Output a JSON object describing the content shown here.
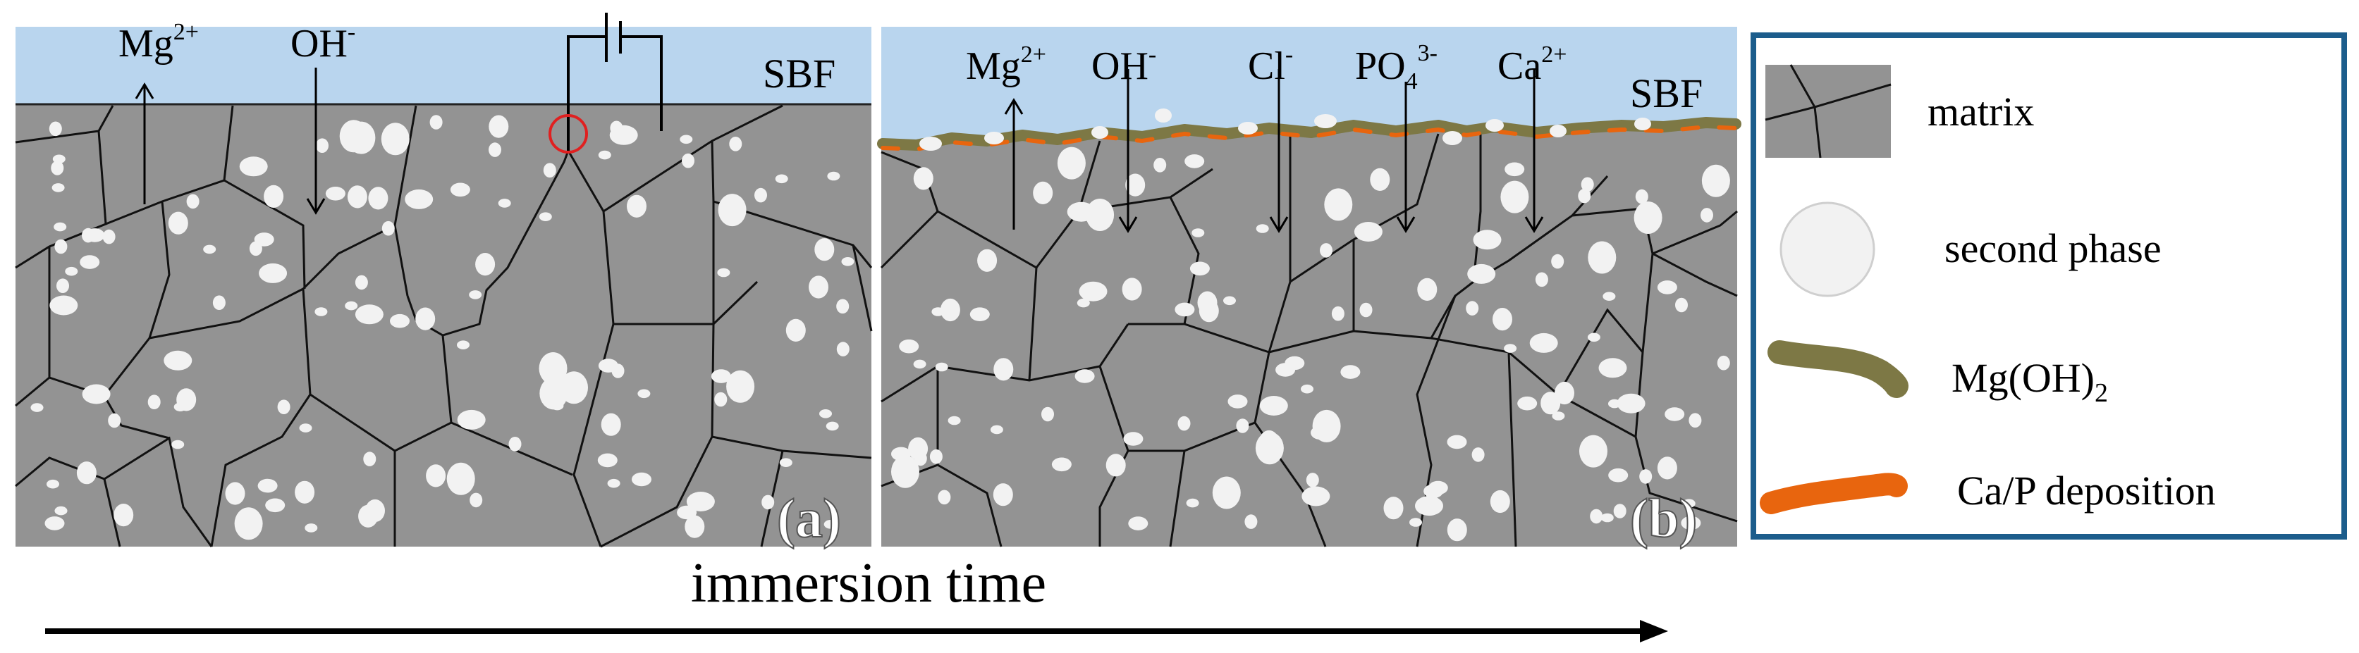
{
  "colors": {
    "solution": "#b9d5ee",
    "matrix": "#939393",
    "grain_boundary": "#111111",
    "second_phase": "#f2f2f2",
    "mgoh2": "#7d7845",
    "cap": "#e8650e",
    "legend_frame": "#1c5d8c",
    "pit_circle": "#e02020"
  },
  "panel_a": {
    "solution_label": "SBF",
    "ions": [
      {
        "base": "Mg",
        "sup": "2+",
        "sub": ""
      },
      {
        "base": "OH",
        "sup": "-",
        "sub": ""
      }
    ],
    "letter": "(a)"
  },
  "panel_b": {
    "solution_label": "SBF",
    "ions": [
      {
        "base": "Mg",
        "sup": "2+",
        "sub": ""
      },
      {
        "base": "OH",
        "sup": "-",
        "sub": ""
      },
      {
        "base": "Cl",
        "sup": "-",
        "sub": ""
      },
      {
        "base": "PO",
        "sup": "3-",
        "sub": "4"
      },
      {
        "base": "Ca",
        "sup": "2+",
        "sub": ""
      }
    ],
    "letter": "(b)"
  },
  "legend": {
    "items": [
      {
        "key": "matrix",
        "label": "matrix"
      },
      {
        "key": "second_phase",
        "label": "second phase"
      },
      {
        "key": "mgoh2",
        "label_base": "Mg(OH)",
        "label_sub": "2"
      },
      {
        "key": "cap",
        "label": "Ca/P deposition"
      }
    ]
  },
  "axis": {
    "label": "immersion time"
  }
}
